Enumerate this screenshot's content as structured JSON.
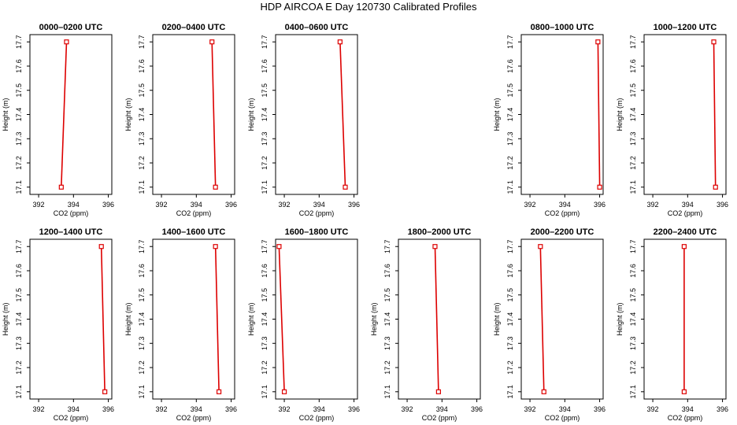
{
  "title": "HDP AIRCOA E  Day 120730  Calibrated Profiles",
  "colors": {
    "line": "#dd0000",
    "frame": "#000000"
  },
  "chart_data": {
    "type": "line",
    "xlabel": "CO2 (ppm)",
    "ylabel": "Height (m)",
    "xlim": [
      391.5,
      396.2
    ],
    "ylim": [
      17.07,
      17.73
    ],
    "xticks": [
      "392",
      "394",
      "396"
    ],
    "yticks": [
      "17.1",
      "17.2",
      "17.3",
      "17.4",
      "17.5",
      "17.6",
      "17.7"
    ],
    "panels": [
      {
        "title": "0000–0200 UTC",
        "points": [
          [
            393.3,
            17.1
          ],
          [
            393.6,
            17.7
          ]
        ]
      },
      {
        "title": "0200–0400 UTC",
        "points": [
          [
            395.1,
            17.1
          ],
          [
            394.9,
            17.7
          ]
        ]
      },
      {
        "title": "0400–0600 UTC",
        "points": [
          [
            395.5,
            17.1
          ],
          [
            395.2,
            17.7
          ]
        ]
      },
      {
        "title": "",
        "points": []
      },
      {
        "title": "0800–1000 UTC",
        "points": [
          [
            396.0,
            17.1
          ],
          [
            395.9,
            17.7
          ]
        ]
      },
      {
        "title": "1000–1200 UTC",
        "points": [
          [
            395.6,
            17.1
          ],
          [
            395.5,
            17.7
          ]
        ]
      },
      {
        "title": "1200–1400 UTC",
        "points": [
          [
            395.8,
            17.1
          ],
          [
            395.6,
            17.7
          ]
        ]
      },
      {
        "title": "1400–1600 UTC",
        "points": [
          [
            395.3,
            17.1
          ],
          [
            395.1,
            17.7
          ]
        ]
      },
      {
        "title": "1600–1800 UTC",
        "points": [
          [
            392.0,
            17.1
          ],
          [
            391.7,
            17.7
          ]
        ]
      },
      {
        "title": "1800–2000 UTC",
        "points": [
          [
            393.8,
            17.1
          ],
          [
            393.6,
            17.7
          ]
        ]
      },
      {
        "title": "2000–2200 UTC",
        "points": [
          [
            392.8,
            17.1
          ],
          [
            392.6,
            17.7
          ]
        ]
      },
      {
        "title": "2200–2400 UTC",
        "points": [
          [
            393.8,
            17.1
          ],
          [
            393.8,
            17.7
          ]
        ]
      }
    ]
  }
}
